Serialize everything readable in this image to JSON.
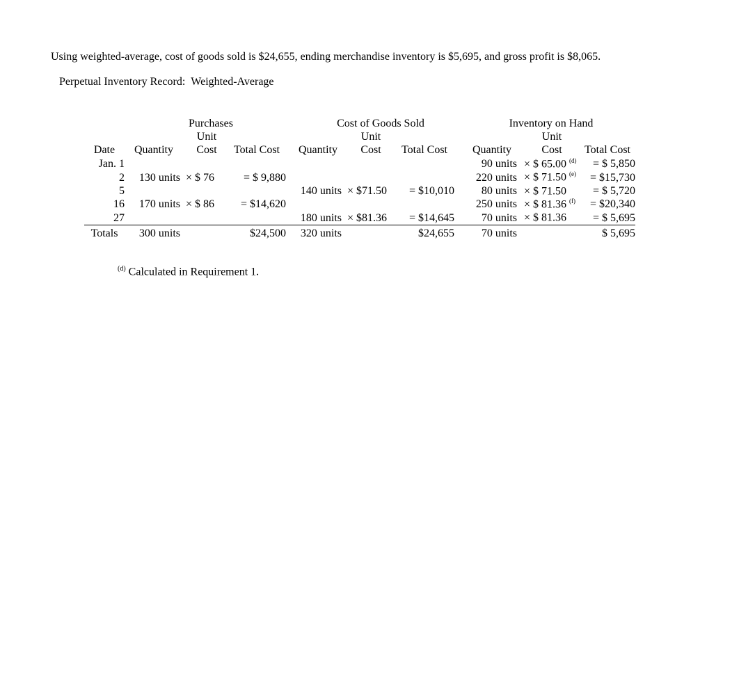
{
  "intro": "Using weighted-average, cost of goods sold is $24,655, ending merchandise inventory is $5,695, and gross profit is $8,065.",
  "subtitle": "Perpetual Inventory Record:  Weighted-Average",
  "headers": {
    "purchases": "Purchases",
    "cogs": "Cost of Goods Sold",
    "inventory": "Inventory on Hand",
    "date": "Date",
    "quantity": "Quantity",
    "unit": "Unit",
    "cost": "Cost",
    "unit_cost1": "Unit Cost",
    "total_cost": "Total Cost"
  },
  "rows": [
    {
      "date": "Jan. 1",
      "p_qty": "",
      "p_uc": "",
      "p_tc": "",
      "c_qty": "",
      "c_uc": "",
      "c_tc": "",
      "i_qty": "90 units",
      "i_uc": "× $ 65.00",
      "i_sup": "(d)",
      "i_tc": "= $  5,850"
    },
    {
      "date": "2",
      "p_qty": "130 units",
      "p_uc": "× $ 76",
      "p_tc": "= $ 9,880",
      "c_qty": "",
      "c_uc": "",
      "c_tc": "",
      "i_qty": "220 units",
      "i_uc": "× $ 71.50",
      "i_sup": "(e)",
      "i_tc": "= $15,730"
    },
    {
      "date": "5",
      "p_qty": "",
      "p_uc": "",
      "p_tc": "",
      "c_qty": "140 units",
      "c_uc": "× $71.50",
      "c_tc": "= $10,010",
      "i_qty": "80 units",
      "i_uc": "× $ 71.50",
      "i_sup": "",
      "i_tc": "= $  5,720"
    },
    {
      "date": "16",
      "p_qty": "170 units",
      "p_uc": "× $ 86",
      "p_tc": "= $14,620",
      "c_qty": "",
      "c_uc": "",
      "c_tc": "",
      "i_qty": "250 units",
      "i_uc": "× $ 81.36",
      "i_sup": "(f)",
      "i_tc": "= $20,340"
    },
    {
      "date": "27",
      "p_qty": "",
      "p_uc": "",
      "p_tc": "",
      "c_qty": "180 units",
      "c_uc": "× $81.36",
      "c_tc": "= $14,645",
      "i_qty": "70 units",
      "i_uc": "× $ 81.36",
      "i_sup": "",
      "i_tc": "= $  5,695"
    }
  ],
  "totals": {
    "label": "Totals",
    "p_qty": "300 units",
    "p_tc": "$24,500",
    "c_qty": "320 units",
    "c_tc": "$24,655",
    "i_qty": "70 units",
    "i_tc": "$  5,695"
  },
  "footnote": {
    "sup": "(d)",
    "text": " Calculated in Requirement 1."
  }
}
